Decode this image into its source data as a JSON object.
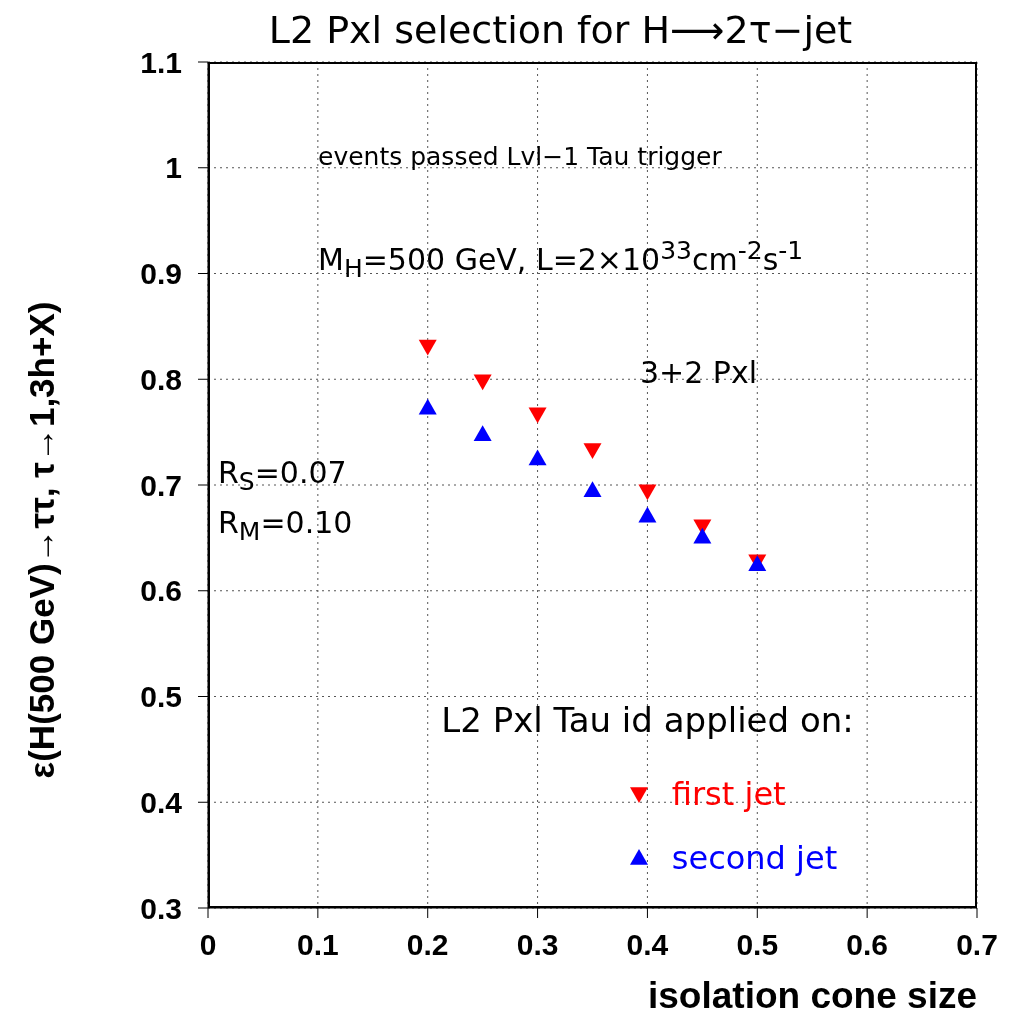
{
  "chart_data": {
    "type": "scatter",
    "title": "L2 Pxl selection for H⟶2τ−jet",
    "xlabel": "isolation cone size",
    "ylabel": "ε(H(500 GeV)→ττ, τ→1,3h+X)",
    "legend_title": "L2 Pxl Tau id applied on:",
    "annotations": [
      "events passed Lvl−1 Tau trigger",
      "M$_{H}$=500 GeV, L=2×10$^{33}$cm$^{-2}$s$^{-1}$",
      "3+2 Pxl",
      "R$_{S}$=0.07",
      "R$_{M}$=0.10"
    ],
    "x": [
      0.2,
      0.25,
      0.3,
      0.35,
      0.4,
      0.45,
      0.5
    ],
    "series": [
      {
        "name": "first jet",
        "color": "#ff0000",
        "marker": "triangle-down",
        "values": [
          0.831,
          0.798,
          0.767,
          0.733,
          0.694,
          0.661,
          0.628
        ]
      },
      {
        "name": "second jet",
        "color": "#0000ff",
        "marker": "triangle",
        "values": [
          0.773,
          0.748,
          0.725,
          0.695,
          0.671,
          0.651,
          0.625
        ]
      }
    ],
    "xlim": [
      0,
      0.7
    ],
    "xticks": [
      0,
      0.1,
      0.2,
      0.3,
      0.4,
      0.5,
      0.6,
      0.7
    ],
    "ylim": [
      0.3,
      1.1
    ],
    "yticks": [
      0.3,
      0.4,
      0.5,
      0.6,
      0.7,
      0.8,
      0.9,
      1,
      1.1
    ],
    "grid": true,
    "legend": "bottom"
  }
}
